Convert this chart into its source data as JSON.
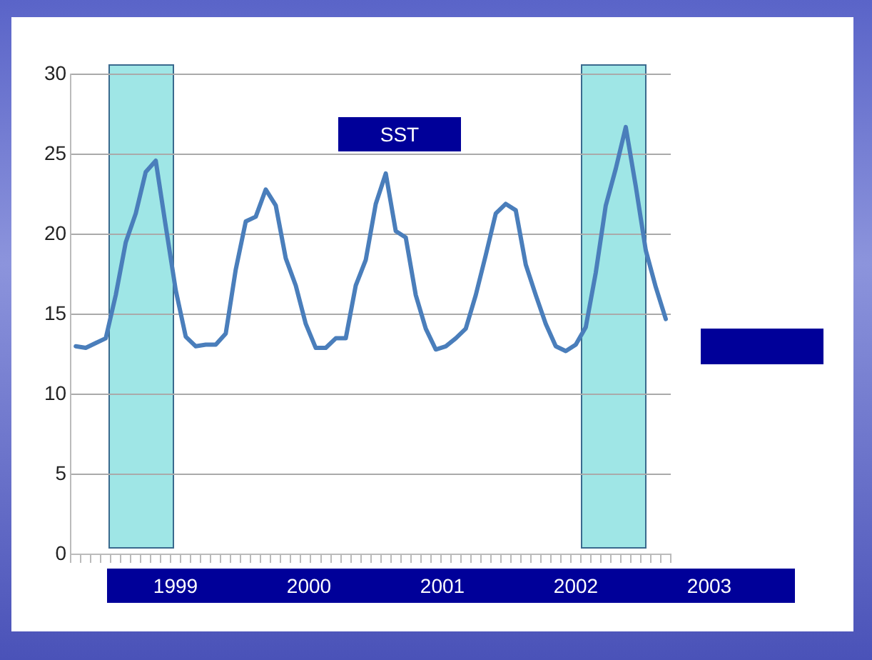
{
  "chart_data": {
    "type": "line",
    "title": "SST",
    "tick_labels": "y",
    "grid": "y",
    "legend": false,
    "marker": "none",
    "line_style": "solid",
    "categories": [
      null,
      null,
      null,
      null,
      null,
      null,
      null,
      null,
      null,
      null,
      null,
      null,
      null,
      null,
      null,
      null,
      null,
      null,
      null,
      null,
      null,
      null,
      null,
      null,
      null,
      null,
      null,
      null,
      null,
      null,
      null,
      null,
      null,
      null,
      null,
      null,
      null,
      null,
      null,
      null,
      null,
      null,
      null,
      null,
      null,
      null,
      null,
      null,
      null,
      null,
      null,
      null,
      null,
      null,
      null,
      null,
      null,
      null,
      null,
      null
    ],
    "ylim": [
      0,
      30
    ],
    "yticks": [
      0,
      5,
      10,
      15,
      20,
      25,
      30
    ],
    "series": [
      {
        "color": "#4a7ebb",
        "values": [
          13.0,
          12.9,
          13.2,
          13.5,
          16.2,
          19.5,
          21.3,
          23.9,
          24.6,
          20.5,
          16.5,
          13.6,
          13.0,
          13.1,
          13.1,
          13.8,
          17.8,
          20.8,
          21.1,
          22.8,
          21.8,
          18.5,
          16.8,
          14.4,
          12.9,
          12.9,
          13.5,
          13.5,
          16.8,
          18.4,
          21.9,
          23.8,
          20.2,
          19.8,
          16.2,
          14.1,
          12.8,
          13.0,
          13.5,
          14.1,
          16.2,
          18.7,
          21.3,
          21.9,
          21.5,
          18.1,
          16.2,
          14.4,
          13.0,
          12.7,
          13.1,
          14.2,
          17.6,
          21.8,
          24.1,
          26.7,
          23.0,
          19.0,
          16.7,
          14.7
        ]
      }
    ],
    "annotations": [
      "1999",
      "2000",
      "2001",
      "2002",
      "2003"
    ]
  }
}
